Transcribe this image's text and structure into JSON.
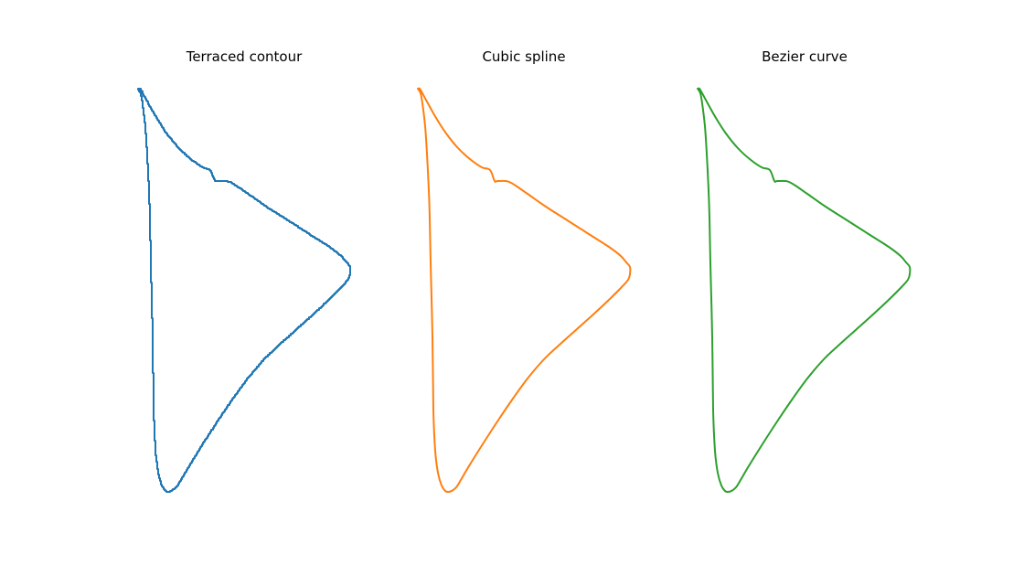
{
  "chart_data": [
    {
      "type": "line",
      "title": "Terraced contour",
      "color": "#1f77b4",
      "style": "terraced",
      "axes_visible": false,
      "xlim": [
        0,
        232
      ],
      "ylim": [
        0,
        441
      ],
      "series": [
        {
          "points": [
            [
              0,
              441
            ],
            [
              2,
              441
            ],
            [
              5,
              436
            ],
            [
              11,
              425
            ],
            [
              20,
              409
            ],
            [
              31,
              392
            ],
            [
              44,
              376
            ],
            [
              57,
              364
            ],
            [
              70,
              355
            ],
            [
              79,
              352
            ],
            [
              84,
              340
            ],
            [
              87,
              340
            ],
            [
              96,
              340
            ],
            [
              100,
              339
            ],
            [
              107,
              335
            ],
            [
              120,
              326
            ],
            [
              140,
              312
            ],
            [
              162,
              298
            ],
            [
              187,
              282
            ],
            [
              209,
              268
            ],
            [
              222,
              258
            ],
            [
              228,
              251
            ],
            [
              232,
              246
            ],
            [
              232,
              238
            ],
            [
              230,
              232
            ],
            [
              223,
              224
            ],
            [
              210,
              211
            ],
            [
              194,
              196
            ],
            [
              174,
              178
            ],
            [
              155,
              161
            ],
            [
              138,
              145
            ],
            [
              120,
              124
            ],
            [
              104,
              102
            ],
            [
              89,
              80
            ],
            [
              74,
              57
            ],
            [
              62,
              38
            ],
            [
              54,
              25
            ],
            [
              47,
              13
            ],
            [
              42,
              5
            ],
            [
              37,
              1
            ],
            [
              33,
              0
            ],
            [
              30,
              1
            ],
            [
              26,
              7
            ],
            [
              22,
              21
            ],
            [
              19,
              45
            ],
            [
              17,
              90
            ],
            [
              16,
              170
            ],
            [
              14,
              250
            ],
            [
              13,
              300
            ],
            [
              12,
              330
            ],
            [
              10,
              370
            ],
            [
              8,
              400
            ],
            [
              5,
              425
            ],
            [
              3,
              436
            ],
            [
              0,
              441
            ]
          ]
        }
      ]
    },
    {
      "type": "line",
      "title": "Cubic spline",
      "color": "#ff7f0e",
      "style": "smooth",
      "axes_visible": false,
      "xlim": [
        0,
        232
      ],
      "ylim": [
        0,
        441
      ],
      "series": [
        {
          "points": [
            [
              0,
              441
            ],
            [
              2,
              441
            ],
            [
              5,
              436
            ],
            [
              11,
              425
            ],
            [
              20,
              409
            ],
            [
              31,
              392
            ],
            [
              44,
              376
            ],
            [
              57,
              364
            ],
            [
              70,
              355
            ],
            [
              79,
              352
            ],
            [
              84,
              340
            ],
            [
              87,
              340
            ],
            [
              96,
              340
            ],
            [
              100,
              339
            ],
            [
              107,
              335
            ],
            [
              120,
              326
            ],
            [
              140,
              312
            ],
            [
              162,
              298
            ],
            [
              187,
              282
            ],
            [
              209,
              268
            ],
            [
              222,
              258
            ],
            [
              228,
              251
            ],
            [
              232,
              246
            ],
            [
              232,
              238
            ],
            [
              230,
              232
            ],
            [
              223,
              224
            ],
            [
              210,
              211
            ],
            [
              194,
              196
            ],
            [
              174,
              178
            ],
            [
              155,
              161
            ],
            [
              138,
              145
            ],
            [
              120,
              124
            ],
            [
              104,
              102
            ],
            [
              89,
              80
            ],
            [
              74,
              57
            ],
            [
              62,
              38
            ],
            [
              54,
              25
            ],
            [
              47,
              13
            ],
            [
              42,
              5
            ],
            [
              37,
              1
            ],
            [
              33,
              0
            ],
            [
              30,
              1
            ],
            [
              26,
              7
            ],
            [
              22,
              21
            ],
            [
              19,
              45
            ],
            [
              17,
              90
            ],
            [
              16,
              170
            ],
            [
              14,
              250
            ],
            [
              13,
              300
            ],
            [
              12,
              330
            ],
            [
              10,
              370
            ],
            [
              8,
              400
            ],
            [
              5,
              425
            ],
            [
              3,
              436
            ],
            [
              0,
              441
            ]
          ]
        }
      ]
    },
    {
      "type": "line",
      "title": "Bezier curve",
      "color": "#2ca02c",
      "style": "smooth",
      "axes_visible": false,
      "xlim": [
        0,
        232
      ],
      "ylim": [
        0,
        441
      ],
      "series": [
        {
          "points": [
            [
              0,
              441
            ],
            [
              2,
              441
            ],
            [
              5,
              436
            ],
            [
              11,
              425
            ],
            [
              20,
              409
            ],
            [
              31,
              392
            ],
            [
              44,
              376
            ],
            [
              57,
              364
            ],
            [
              70,
              355
            ],
            [
              79,
              352
            ],
            [
              84,
              340
            ],
            [
              87,
              340
            ],
            [
              96,
              340
            ],
            [
              100,
              339
            ],
            [
              107,
              335
            ],
            [
              120,
              326
            ],
            [
              140,
              312
            ],
            [
              162,
              298
            ],
            [
              187,
              282
            ],
            [
              209,
              268
            ],
            [
              222,
              258
            ],
            [
              228,
              251
            ],
            [
              232,
              246
            ],
            [
              232,
              238
            ],
            [
              230,
              232
            ],
            [
              223,
              224
            ],
            [
              210,
              211
            ],
            [
              194,
              196
            ],
            [
              174,
              178
            ],
            [
              155,
              161
            ],
            [
              138,
              145
            ],
            [
              120,
              124
            ],
            [
              104,
              102
            ],
            [
              89,
              80
            ],
            [
              74,
              57
            ],
            [
              62,
              38
            ],
            [
              54,
              25
            ],
            [
              47,
              13
            ],
            [
              42,
              5
            ],
            [
              37,
              1
            ],
            [
              33,
              0
            ],
            [
              30,
              1
            ],
            [
              26,
              7
            ],
            [
              22,
              21
            ],
            [
              19,
              45
            ],
            [
              17,
              90
            ],
            [
              16,
              170
            ],
            [
              14,
              250
            ],
            [
              13,
              300
            ],
            [
              12,
              330
            ],
            [
              10,
              370
            ],
            [
              8,
              400
            ],
            [
              5,
              425
            ],
            [
              3,
              436
            ],
            [
              0,
              441
            ]
          ]
        }
      ]
    }
  ]
}
